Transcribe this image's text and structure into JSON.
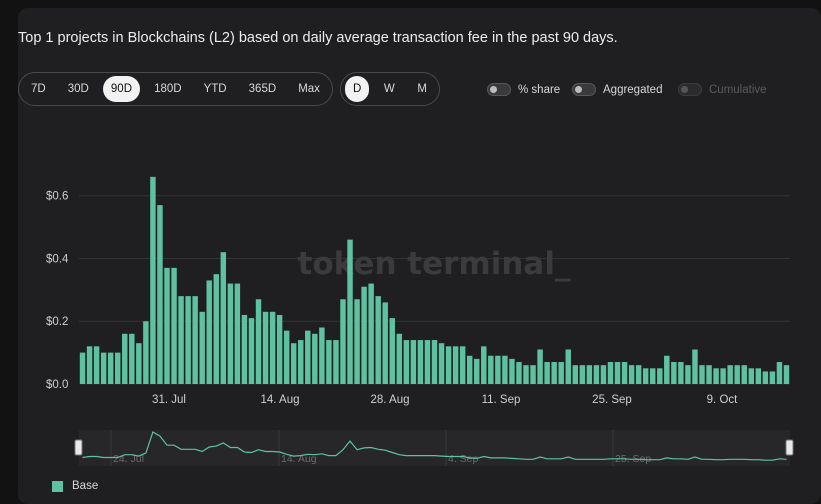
{
  "title": "Top 1 projects in Blockchains (L2) based on daily average transaction fee in the past 90 days.",
  "range_buttons": [
    "7D",
    "30D",
    "90D",
    "180D",
    "YTD",
    "365D",
    "Max"
  ],
  "range_selected": "90D",
  "granularity_buttons": [
    "D",
    "W",
    "M"
  ],
  "granularity_selected": "D",
  "toggles": {
    "share": "% share",
    "aggregated": "Aggregated",
    "cumulative": "Cumulative"
  },
  "watermark": "token terminal_",
  "colors": {
    "series": "#5ec2a0",
    "background": "#1f1f21",
    "grid": "#333336"
  },
  "chart_data": {
    "type": "bar",
    "title": "Top 1 projects in Blockchains (L2) based on daily average transaction fee in the past 90 days.",
    "xlabel": "",
    "ylabel": "",
    "ylim": [
      0,
      0.65
    ],
    "yticks": [
      "$0.0",
      "$0.2",
      "$0.4",
      "$0.6"
    ],
    "xticks": [
      "31. Jul",
      "14. Aug",
      "28. Aug",
      "11. Sep",
      "25. Sep",
      "9. Oct"
    ],
    "navigator_ticks": [
      "24. Jul",
      "14. Aug",
      "4. Sep",
      "25. Sep"
    ],
    "grid": true,
    "legend_position": "bottom-left",
    "series": [
      {
        "name": "Base",
        "values": [
          0.1,
          0.12,
          0.12,
          0.1,
          0.1,
          0.1,
          0.16,
          0.16,
          0.13,
          0.2,
          0.66,
          0.57,
          0.37,
          0.37,
          0.28,
          0.28,
          0.28,
          0.23,
          0.33,
          0.35,
          0.42,
          0.32,
          0.32,
          0.22,
          0.21,
          0.27,
          0.23,
          0.23,
          0.22,
          0.17,
          0.13,
          0.14,
          0.17,
          0.16,
          0.18,
          0.14,
          0.14,
          0.27,
          0.46,
          0.27,
          0.31,
          0.32,
          0.28,
          0.26,
          0.21,
          0.16,
          0.14,
          0.14,
          0.14,
          0.14,
          0.14,
          0.13,
          0.12,
          0.12,
          0.12,
          0.09,
          0.08,
          0.12,
          0.09,
          0.09,
          0.09,
          0.08,
          0.07,
          0.06,
          0.06,
          0.11,
          0.07,
          0.07,
          0.07,
          0.11,
          0.06,
          0.06,
          0.06,
          0.06,
          0.06,
          0.07,
          0.07,
          0.07,
          0.06,
          0.06,
          0.05,
          0.05,
          0.05,
          0.09,
          0.07,
          0.07,
          0.06,
          0.11,
          0.06,
          0.06,
          0.05,
          0.05,
          0.06,
          0.06,
          0.06,
          0.05,
          0.05,
          0.04,
          0.04,
          0.07,
          0.06
        ]
      }
    ]
  }
}
